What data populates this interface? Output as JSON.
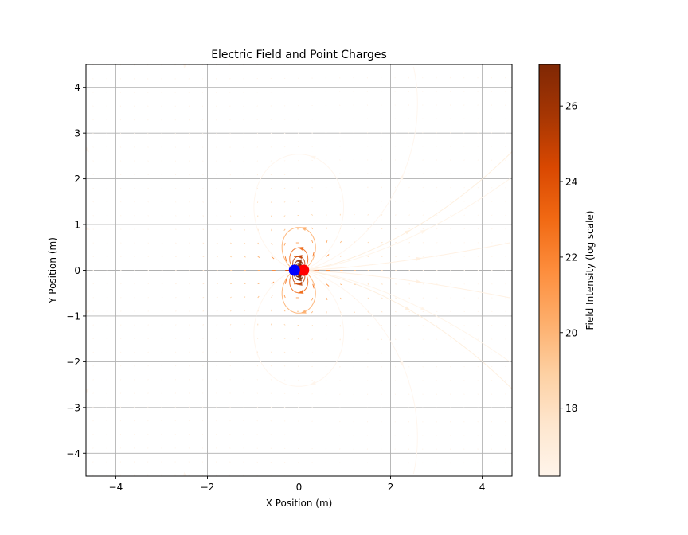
{
  "chart_data": {
    "type": "streamplot",
    "title": "Electric Field and Point Charges",
    "xlabel": "X Position (m)",
    "ylabel": "Y Position (m)",
    "xlim": [
      -4.65,
      4.65
    ],
    "ylim": [
      -4.5,
      4.5
    ],
    "xticks": [
      -4,
      -2,
      0,
      2,
      4
    ],
    "yticks": [
      -4,
      -3,
      -2,
      -1,
      0,
      1,
      2,
      3,
      4
    ],
    "xtick_labels": [
      "−4",
      "−2",
      "0",
      "2",
      "4"
    ],
    "ytick_labels": [
      "−4",
      "−3",
      "−2",
      "−1",
      "0",
      "1",
      "2",
      "3",
      "4"
    ],
    "grid": true,
    "charges": [
      {
        "x": 0.1,
        "y": 0,
        "color": "#ff0000",
        "sign": "positive"
      },
      {
        "x": -0.1,
        "y": 0,
        "color": "#0000ff",
        "sign": "negative"
      }
    ],
    "colorbar": {
      "label": "Field Intensity (log scale)",
      "range": [
        16.2,
        27.1
      ],
      "ticks": [
        18,
        20,
        22,
        24,
        26
      ],
      "tick_labels": [
        "18",
        "20",
        "22",
        "24",
        "26"
      ],
      "colormap": "Oranges",
      "colors": [
        "#fff5eb",
        "#fee6ce",
        "#fdd0a2",
        "#fdae6b",
        "#fd8d3c",
        "#f16913",
        "#d94801",
        "#a63603",
        "#7f2704"
      ]
    },
    "quiver_grid_spacing": 0.3
  }
}
